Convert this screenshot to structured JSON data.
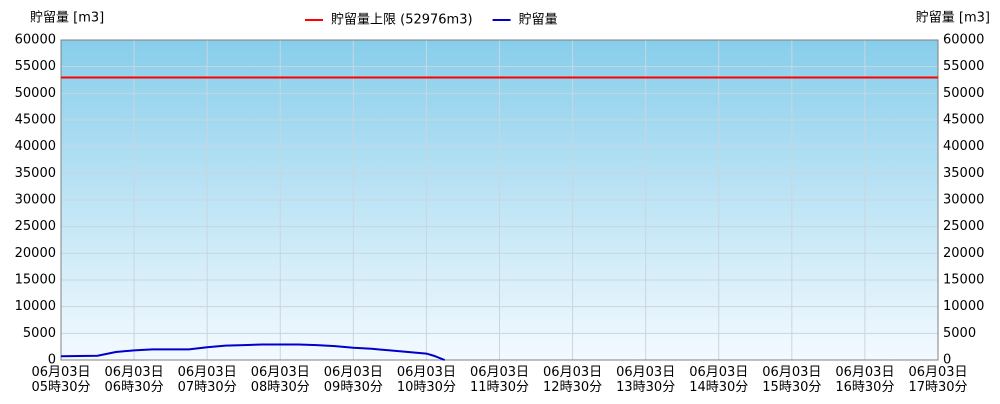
{
  "chart_data": {
    "type": "line",
    "ylabel": "貯留量 [m3]",
    "y2label": "貯留量 [m3]",
    "xlim": [
      5.5,
      17.5
    ],
    "xticks": [
      {
        "value": 5.5,
        "label": "06月03日\n05時30分"
      },
      {
        "value": 6.5,
        "label": "06月03日\n06時30分"
      },
      {
        "value": 7.5,
        "label": "06月03日\n07時30分"
      },
      {
        "value": 8.5,
        "label": "06月03日\n08時30分"
      },
      {
        "value": 9.5,
        "label": "06月03日\n09時30分"
      },
      {
        "value": 10.5,
        "label": "06月03日\n10時30分"
      },
      {
        "value": 11.5,
        "label": "06月03日\n11時30分"
      },
      {
        "value": 12.5,
        "label": "06月03日\n12時30分"
      },
      {
        "value": 13.5,
        "label": "06月03日\n13時30分"
      },
      {
        "value": 14.5,
        "label": "06月03日\n14時30分"
      },
      {
        "value": 15.5,
        "label": "06月03日\n15時30分"
      },
      {
        "value": 16.5,
        "label": "06月03日\n16時30分"
      },
      {
        "value": 17.5,
        "label": "06月03日\n17時30分"
      }
    ],
    "ylim": [
      0,
      60000
    ],
    "yticks": [
      0,
      5000,
      10000,
      15000,
      20000,
      25000,
      30000,
      35000,
      40000,
      45000,
      50000,
      55000,
      60000
    ],
    "y2lim": [
      0,
      60000
    ],
    "y2ticks": [
      0,
      5000,
      10000,
      15000,
      20000,
      25000,
      30000,
      35000,
      40000,
      45000,
      50000,
      55000,
      60000
    ],
    "grid": true,
    "limit_line": {
      "name": "貯留量上限 (52976m3)",
      "color": "#ff0000",
      "value": 52976
    },
    "series": [
      {
        "name": "貯留量",
        "color": "#0000cc",
        "x": [
          5.5,
          6.0,
          6.25,
          6.5,
          6.75,
          7.25,
          7.5,
          7.75,
          8.0,
          8.25,
          8.75,
          9.0,
          9.25,
          9.5,
          9.75,
          10.0,
          10.25,
          10.5,
          10.6,
          10.75
        ],
        "values": [
          700,
          800,
          1500,
          1800,
          2000,
          2000,
          2400,
          2700,
          2800,
          2900,
          2900,
          2800,
          2600,
          2300,
          2100,
          1800,
          1500,
          1200,
          800,
          0
        ]
      }
    ]
  }
}
